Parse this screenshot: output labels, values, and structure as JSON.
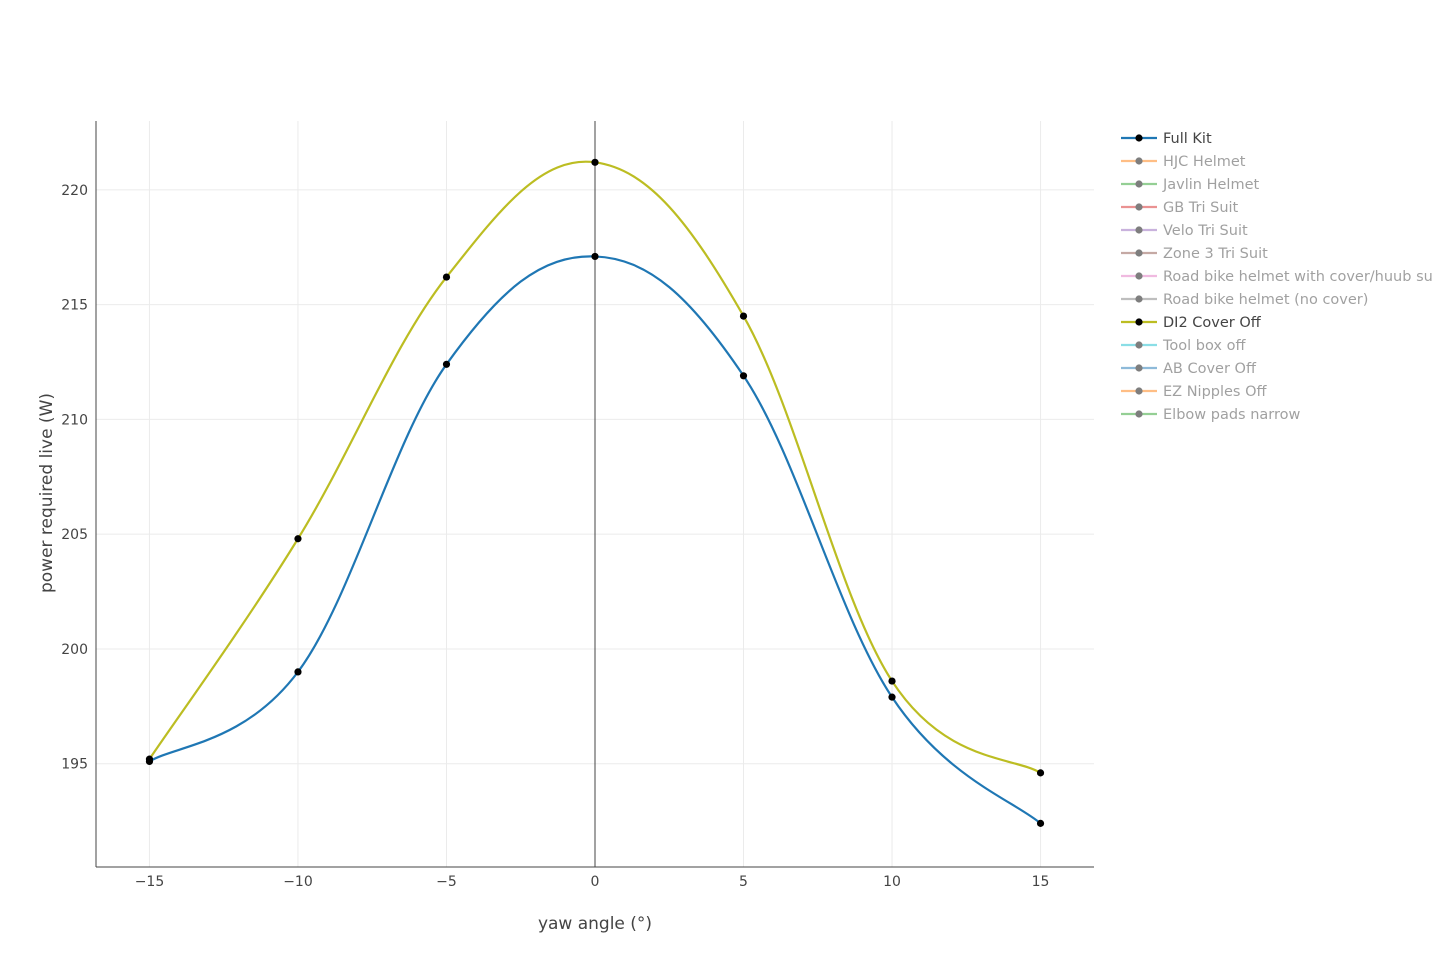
{
  "chart_data": {
    "type": "line",
    "xlabel": "yaw angle (°)",
    "ylabel": "power required live (W)",
    "xlim": [
      -16.8,
      16.8
    ],
    "ylim": [
      190.5,
      223
    ],
    "x_ticks": [
      -15,
      -10,
      -5,
      0,
      5,
      10,
      15
    ],
    "x_tick_labels": [
      "−15",
      "−10",
      "−5",
      "0",
      "5",
      "10",
      "15"
    ],
    "y_ticks": [
      195,
      200,
      205,
      210,
      215,
      220
    ],
    "y_tick_labels": [
      "195",
      "200",
      "205",
      "210",
      "215",
      "220"
    ],
    "grid": true,
    "legend_position": "right",
    "series": [
      {
        "name": "Full Kit",
        "color": "#1f77b4",
        "visible": true,
        "x": [
          -15,
          -10,
          -5,
          0,
          5,
          10,
          15
        ],
        "y": [
          195.1,
          199.0,
          212.4,
          217.1,
          211.9,
          197.9,
          192.4
        ]
      },
      {
        "name": "HJC Helmet",
        "color": "#ff7f0e",
        "visible": false
      },
      {
        "name": "Javlin Helmet",
        "color": "#2ca02c",
        "visible": false
      },
      {
        "name": "GB Tri Suit",
        "color": "#d62728",
        "visible": false
      },
      {
        "name": "Velo Tri Suit",
        "color": "#9467bd",
        "visible": false
      },
      {
        "name": "Zone 3 Tri Suit",
        "color": "#8c564b",
        "visible": false
      },
      {
        "name": "Road bike helmet with cover/huub su",
        "color": "#e377c2",
        "visible": false
      },
      {
        "name": "Road bike helmet (no cover)",
        "color": "#7f7f7f",
        "visible": false
      },
      {
        "name": "DI2 Cover Off",
        "color": "#bcbd22",
        "visible": true,
        "x": [
          -15,
          -10,
          -5,
          0,
          5,
          10,
          15
        ],
        "y": [
          195.2,
          204.8,
          216.2,
          221.2,
          214.5,
          198.6,
          194.6
        ]
      },
      {
        "name": "Tool box off",
        "color": "#17becf",
        "visible": false
      },
      {
        "name": "AB Cover Off",
        "color": "#1f77b4",
        "visible": false
      },
      {
        "name": "EZ Nipples Off",
        "color": "#ff7f0e",
        "visible": false
      },
      {
        "name": "Elbow pads narrow",
        "color": "#2ca02c",
        "visible": false
      }
    ]
  }
}
